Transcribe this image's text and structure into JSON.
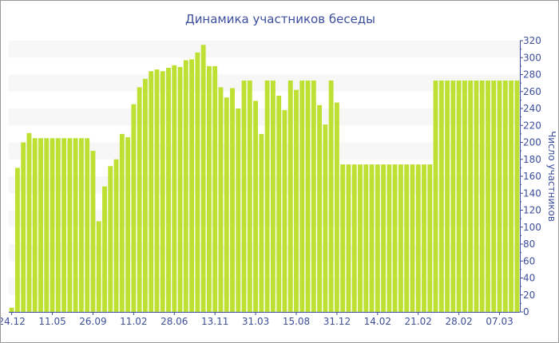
{
  "chart_data": {
    "type": "bar",
    "title": "Динамика участников беседы",
    "xlabel": "",
    "ylabel": "Число участников",
    "ylim": [
      0,
      320
    ],
    "yticks": [
      0,
      20,
      40,
      60,
      80,
      100,
      120,
      140,
      160,
      180,
      200,
      220,
      240,
      260,
      280,
      300,
      320
    ],
    "xtick_labels": [
      "24.12",
      "11.05",
      "26.09",
      "11.02",
      "28.06",
      "13.11",
      "31.03",
      "15.08",
      "31.12",
      "14.02",
      "21.02",
      "28.02",
      "07.03"
    ],
    "xtick_every": 7,
    "values": [
      5,
      170,
      200,
      211,
      205,
      205,
      205,
      205,
      205,
      205,
      205,
      205,
      205,
      205,
      190,
      107,
      148,
      172,
      180,
      210,
      206,
      245,
      265,
      275,
      284,
      286,
      284,
      288,
      291,
      289,
      297,
      298,
      306,
      315,
      290,
      290,
      265,
      253,
      264,
      240,
      273,
      273,
      249,
      210,
      273,
      273,
      255,
      238,
      273,
      262,
      273,
      273,
      273,
      244,
      221,
      273,
      247,
      174,
      174,
      174,
      174,
      174,
      174,
      174,
      174,
      174,
      174,
      174,
      174,
      174,
      174,
      174,
      174,
      273,
      273,
      273,
      273,
      273,
      273,
      273,
      273,
      273,
      273,
      273,
      273,
      273,
      273,
      273
    ],
    "bar_color": "#bde032",
    "axis_color": "#3d4e9c",
    "grid": "alternating bands",
    "y_axis_position": "right"
  }
}
